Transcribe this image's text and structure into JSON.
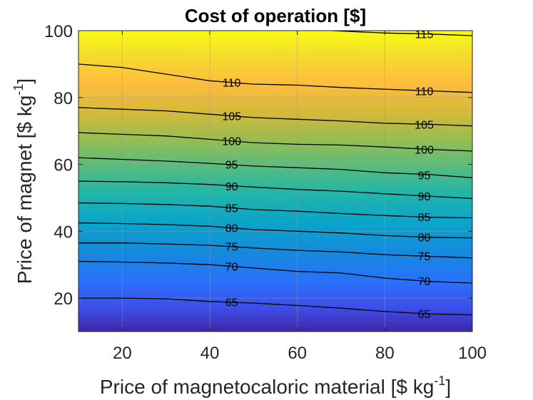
{
  "chart_data": {
    "type": "contour",
    "title": "Cost of operation [$]",
    "xlabel": "Price of magnetocaloric material [$ kg",
    "xlabel_sup": "-1",
    "xlabel_end": "]",
    "ylabel": "Price of magnet [$ kg",
    "ylabel_sup": "-1",
    "ylabel_end": "]",
    "xlim": [
      10,
      100
    ],
    "ylim": [
      10,
      100
    ],
    "xticks": [
      20,
      40,
      60,
      80,
      100
    ],
    "yticks": [
      20,
      40,
      60,
      80,
      100
    ],
    "grid": true,
    "colormap": "parula",
    "zrange": [
      62,
      117
    ],
    "levels": [
      {
        "level": 65,
        "points": [
          [
            10,
            20
          ],
          [
            20,
            20
          ],
          [
            30,
            19.8
          ],
          [
            40,
            19
          ],
          [
            50,
            18.5
          ],
          [
            60,
            17.8
          ],
          [
            70,
            17
          ],
          [
            80,
            16
          ],
          [
            90,
            15.3
          ],
          [
            100,
            15
          ]
        ],
        "labels": [
          {
            "x": 45,
            "y": 18.8,
            "text": "65"
          },
          {
            "x": 89,
            "y": 15.3,
            "text": "65"
          }
        ]
      },
      {
        "level": 70,
        "points": [
          [
            10,
            31
          ],
          [
            20,
            30.8
          ],
          [
            30,
            30.5
          ],
          [
            40,
            30
          ],
          [
            50,
            29
          ],
          [
            60,
            28
          ],
          [
            70,
            27.5
          ],
          [
            80,
            26
          ],
          [
            90,
            25
          ],
          [
            100,
            24.5
          ]
        ],
        "labels": [
          {
            "x": 45,
            "y": 29.5,
            "text": "70"
          },
          {
            "x": 89,
            "y": 25.1,
            "text": "70"
          }
        ]
      },
      {
        "level": 75,
        "points": [
          [
            10,
            36.5
          ],
          [
            20,
            36.5
          ],
          [
            30,
            36.2
          ],
          [
            40,
            35.8
          ],
          [
            50,
            35
          ],
          [
            60,
            34.3
          ],
          [
            70,
            33.8
          ],
          [
            80,
            33
          ],
          [
            90,
            32.5
          ],
          [
            100,
            32
          ]
        ],
        "labels": [
          {
            "x": 45,
            "y": 35.5,
            "text": "75"
          },
          {
            "x": 89,
            "y": 32.6,
            "text": "75"
          }
        ]
      },
      {
        "level": 80,
        "points": [
          [
            10,
            42.5
          ],
          [
            20,
            42.3
          ],
          [
            30,
            42
          ],
          [
            40,
            41.5
          ],
          [
            50,
            40.5
          ],
          [
            60,
            40
          ],
          [
            70,
            39.5
          ],
          [
            80,
            38.7
          ],
          [
            90,
            38.2
          ],
          [
            100,
            38
          ]
        ],
        "labels": [
          {
            "x": 45,
            "y": 41,
            "text": "80"
          },
          {
            "x": 89,
            "y": 38.3,
            "text": "80"
          }
        ]
      },
      {
        "level": 85,
        "points": [
          [
            10,
            48.5
          ],
          [
            20,
            48.3
          ],
          [
            30,
            48
          ],
          [
            40,
            47.5
          ],
          [
            50,
            46.5
          ],
          [
            60,
            46
          ],
          [
            70,
            45.3
          ],
          [
            80,
            44.7
          ],
          [
            90,
            44.2
          ],
          [
            100,
            44
          ]
        ],
        "labels": [
          {
            "x": 45,
            "y": 47,
            "text": "85"
          },
          {
            "x": 89,
            "y": 44.3,
            "text": "85"
          }
        ]
      },
      {
        "level": 90,
        "points": [
          [
            10,
            55
          ],
          [
            20,
            54.8
          ],
          [
            30,
            54.5
          ],
          [
            40,
            54
          ],
          [
            50,
            53.2
          ],
          [
            60,
            52.5
          ],
          [
            70,
            52
          ],
          [
            80,
            51.2
          ],
          [
            90,
            50.5
          ],
          [
            100,
            49.8
          ]
        ],
        "labels": [
          {
            "x": 45,
            "y": 53.5,
            "text": "90"
          },
          {
            "x": 89,
            "y": 50.5,
            "text": "90"
          }
        ]
      },
      {
        "level": 95,
        "points": [
          [
            10,
            62
          ],
          [
            20,
            61.5
          ],
          [
            30,
            61
          ],
          [
            40,
            60.3
          ],
          [
            50,
            59.5
          ],
          [
            60,
            59
          ],
          [
            70,
            58.5
          ],
          [
            80,
            57.5
          ],
          [
            90,
            57
          ],
          [
            100,
            56
          ]
        ],
        "labels": [
          {
            "x": 45,
            "y": 60,
            "text": "95"
          },
          {
            "x": 89,
            "y": 56.8,
            "text": "95"
          }
        ]
      },
      {
        "level": 100,
        "points": [
          [
            10,
            69.5
          ],
          [
            20,
            69
          ],
          [
            30,
            68.5
          ],
          [
            40,
            67.5
          ],
          [
            50,
            66.5
          ],
          [
            60,
            66
          ],
          [
            70,
            65.8
          ],
          [
            80,
            65.2
          ],
          [
            90,
            64.5
          ],
          [
            100,
            64
          ]
        ],
        "labels": [
          {
            "x": 45,
            "y": 67,
            "text": "100"
          },
          {
            "x": 89,
            "y": 64.5,
            "text": "100"
          }
        ]
      },
      {
        "level": 105,
        "points": [
          [
            10,
            77
          ],
          [
            20,
            76.5
          ],
          [
            30,
            76
          ],
          [
            40,
            75
          ],
          [
            50,
            74
          ],
          [
            60,
            73.5
          ],
          [
            70,
            73
          ],
          [
            80,
            72.3
          ],
          [
            90,
            72
          ],
          [
            100,
            71.5
          ]
        ],
        "labels": [
          {
            "x": 45,
            "y": 74.5,
            "text": "105"
          },
          {
            "x": 89,
            "y": 72,
            "text": "105"
          }
        ]
      },
      {
        "level": 110,
        "points": [
          [
            10,
            90
          ],
          [
            20,
            89
          ],
          [
            30,
            87
          ],
          [
            40,
            85
          ],
          [
            50,
            84
          ],
          [
            60,
            83.7
          ],
          [
            70,
            83
          ],
          [
            80,
            82.5
          ],
          [
            90,
            82
          ],
          [
            100,
            81.5
          ]
        ],
        "labels": [
          {
            "x": 45,
            "y": 84.5,
            "text": "110"
          },
          {
            "x": 89,
            "y": 82,
            "text": "110"
          }
        ]
      },
      {
        "level": 115,
        "points": [
          [
            68,
            100
          ],
          [
            80,
            99.3
          ],
          [
            90,
            99
          ],
          [
            100,
            98.5
          ]
        ],
        "labels": [
          {
            "x": 89,
            "y": 99,
            "text": "115"
          }
        ]
      }
    ]
  }
}
